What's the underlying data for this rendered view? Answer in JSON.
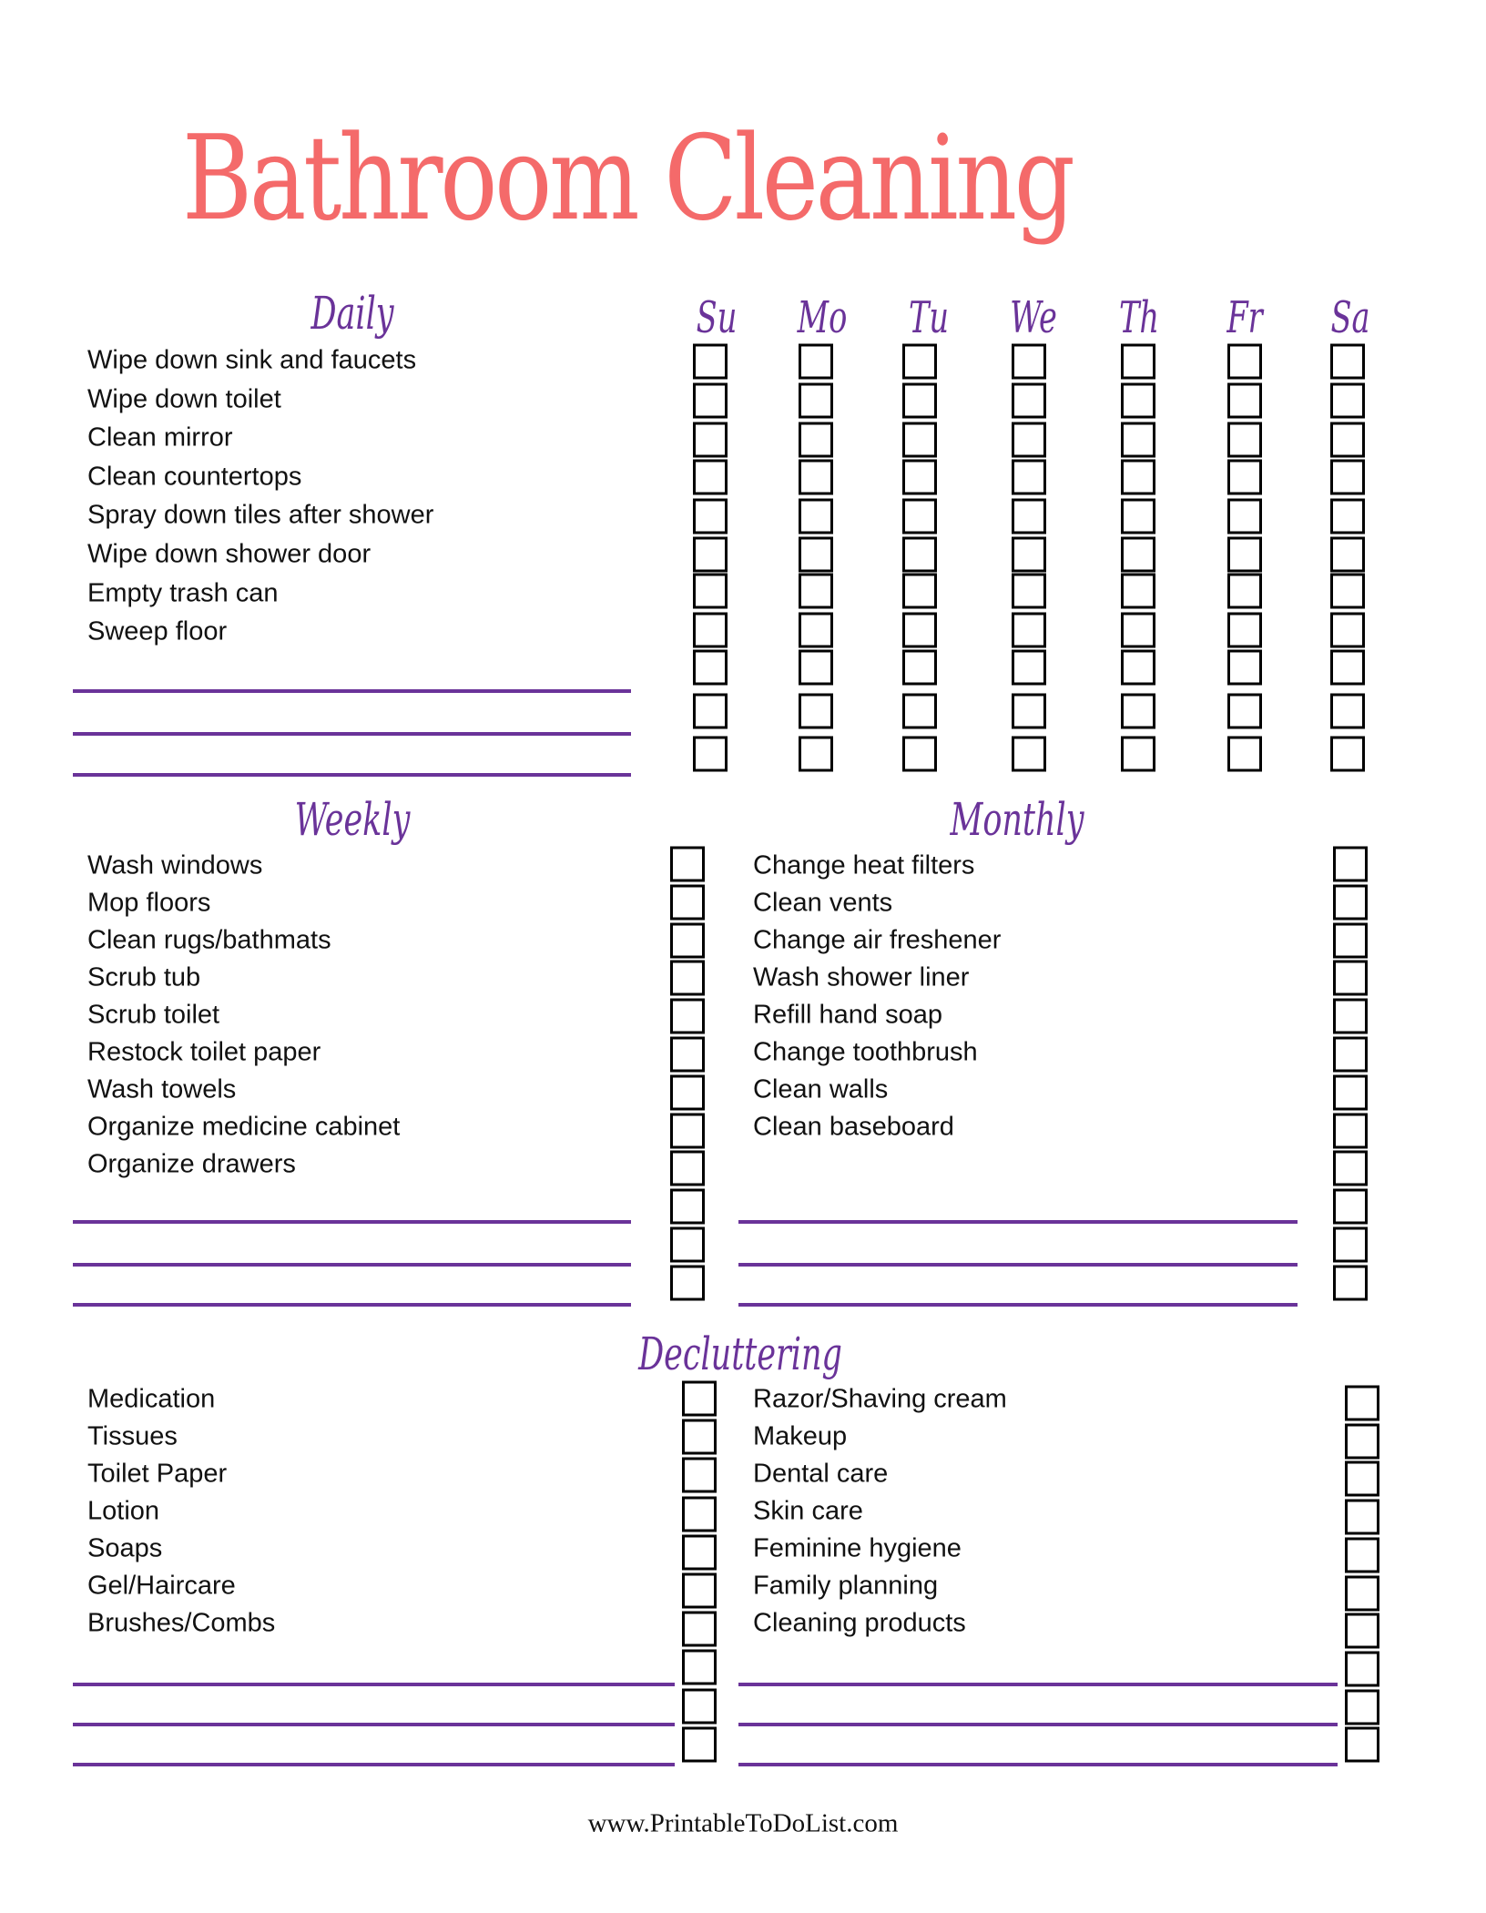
{
  "title": "Bathroom Cleaning",
  "colors": {
    "title": "#f46a6a",
    "accent": "#6a3399",
    "text": "#111111"
  },
  "daily": {
    "heading": "Daily",
    "days": [
      "Su",
      "Mo",
      "Tu",
      "We",
      "Th",
      "Fr",
      "Sa"
    ],
    "items": [
      "Wipe down sink and faucets",
      "Wipe down toilet",
      "Clean mirror",
      "Clean countertops",
      "Spray down tiles after shower",
      "Wipe down shower door",
      "Empty trash can",
      "Sweep floor"
    ]
  },
  "weekly": {
    "heading": "Weekly",
    "items": [
      "Wash windows",
      "Mop floors",
      "Clean rugs/bathmats",
      "Scrub tub",
      "Scrub toilet",
      "Restock toilet paper",
      "Wash towels",
      "Organize medicine cabinet",
      "Organize drawers"
    ]
  },
  "monthly": {
    "heading": "Monthly",
    "items": [
      "Change heat filters",
      "Clean vents",
      "Change air freshener",
      "Wash shower liner",
      "Refill hand soap",
      "Change toothbrush",
      "Clean walls",
      "Clean baseboard"
    ]
  },
  "decluttering": {
    "heading": "Decluttering",
    "left_items": [
      "Medication",
      "Tissues",
      "Toilet Paper",
      "Lotion",
      "Soaps",
      "Gel/Haircare",
      "Brushes/Combs"
    ],
    "right_items": [
      "Razor/Shaving cream",
      "Makeup",
      "Dental care",
      "Skin care",
      "Feminine hygiene",
      "Family planning",
      "Cleaning products"
    ]
  },
  "footer": "www.PrintableToDoList.com"
}
